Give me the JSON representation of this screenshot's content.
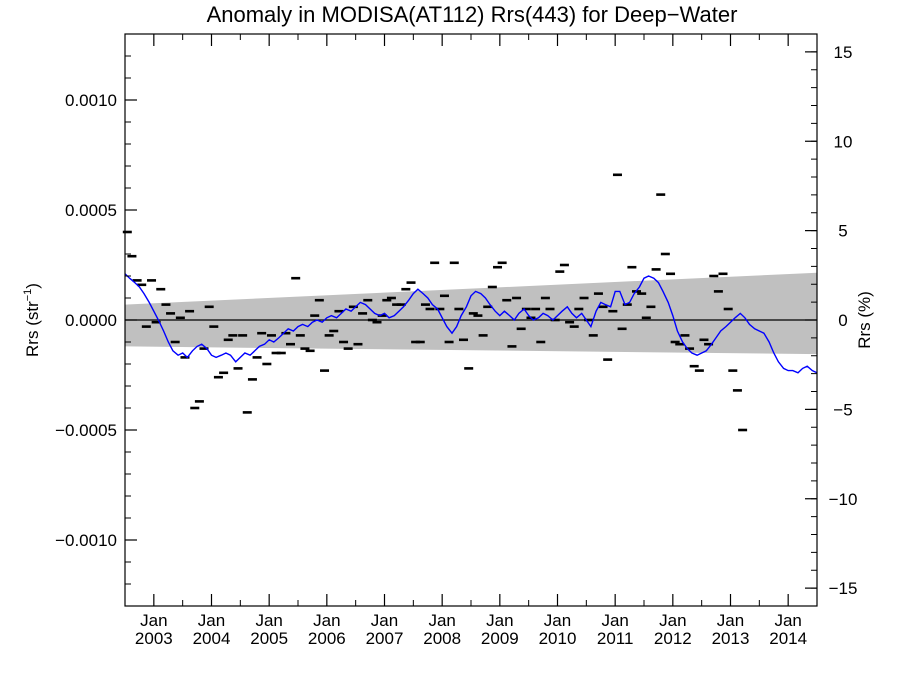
{
  "chart_data": {
    "type": "scatter",
    "title": "Anomaly in MODISA(AT112) Rrs(443) for Deep−Water",
    "ylabel_left": "Rrs (str",
    "ylabel_left_sup": "−1",
    "ylabel_left_close": ")",
    "ylabel_right": "Rrs (%)",
    "xlim": [
      2002.5,
      2014.5
    ],
    "ylim_left": [
      -0.0013,
      0.0013
    ],
    "ylim_right": [
      -16,
      16
    ],
    "grid": false,
    "y_ticks_left": [
      {
        "value": 0.001,
        "label": "0.0010"
      },
      {
        "value": 0.0005,
        "label": "0.0005"
      },
      {
        "value": 0.0,
        "label": "0.0000"
      },
      {
        "value": -0.0005,
        "label": "−0.0005"
      },
      {
        "value": -0.001,
        "label": "−0.0010"
      }
    ],
    "y_ticks_right": [
      {
        "value": 15,
        "label": "15"
      },
      {
        "value": 10,
        "label": "10"
      },
      {
        "value": 5,
        "label": "5"
      },
      {
        "value": 0,
        "label": "0"
      },
      {
        "value": -5,
        "label": "−5"
      },
      {
        "value": -10,
        "label": "−10"
      },
      {
        "value": -15,
        "label": "−15"
      }
    ],
    "x_ticks": [
      {
        "value": 2003.0,
        "month": "Jan",
        "year": "2003"
      },
      {
        "value": 2004.0,
        "month": "Jan",
        "year": "2004"
      },
      {
        "value": 2005.0,
        "month": "Jan",
        "year": "2005"
      },
      {
        "value": 2006.0,
        "month": "Jan",
        "year": "2006"
      },
      {
        "value": 2007.0,
        "month": "Jan",
        "year": "2007"
      },
      {
        "value": 2008.0,
        "month": "Jan",
        "year": "2008"
      },
      {
        "value": 2009.0,
        "month": "Jan",
        "year": "2009"
      },
      {
        "value": 2010.0,
        "month": "Jan",
        "year": "2010"
      },
      {
        "value": 2011.0,
        "month": "Jan",
        "year": "2011"
      },
      {
        "value": 2012.0,
        "month": "Jan",
        "year": "2012"
      },
      {
        "value": 2013.0,
        "month": "Jan",
        "year": "2013"
      },
      {
        "value": 2014.0,
        "month": "Jan",
        "year": "2014"
      }
    ],
    "trend_band": {
      "start_x": 2002.5,
      "start_lower": -0.00012,
      "start_upper": 7e-05,
      "end_x": 2014.5,
      "end_lower": -0.000155,
      "end_upper": 0.000215
    },
    "zero_line": 0.0,
    "colors": {
      "band": "#c0c0c0",
      "smoothed_line": "#0000ff",
      "points": "#000000",
      "axes": "#000000"
    },
    "monthly_points": [
      {
        "x": 2002.54,
        "y": 0.0004
      },
      {
        "x": 2002.62,
        "y": 0.00029
      },
      {
        "x": 2002.71,
        "y": 0.00018
      },
      {
        "x": 2002.79,
        "y": 0.00016
      },
      {
        "x": 2002.87,
        "y": -3e-05
      },
      {
        "x": 2002.96,
        "y": 0.00018
      },
      {
        "x": 2003.04,
        "y": -1e-05
      },
      {
        "x": 2003.12,
        "y": 0.00014
      },
      {
        "x": 2003.21,
        "y": 7e-05
      },
      {
        "x": 2003.29,
        "y": 3e-05
      },
      {
        "x": 2003.37,
        "y": -0.0001
      },
      {
        "x": 2003.46,
        "y": 1e-05
      },
      {
        "x": 2003.54,
        "y": -0.00017
      },
      {
        "x": 2003.62,
        "y": 4e-05
      },
      {
        "x": 2003.71,
        "y": -0.0004
      },
      {
        "x": 2003.79,
        "y": -0.00037
      },
      {
        "x": 2003.87,
        "y": -0.00013
      },
      {
        "x": 2003.96,
        "y": 6e-05
      },
      {
        "x": 2004.04,
        "y": -3e-05
      },
      {
        "x": 2004.12,
        "y": -0.00026
      },
      {
        "x": 2004.21,
        "y": -0.00024
      },
      {
        "x": 2004.29,
        "y": -9e-05
      },
      {
        "x": 2004.37,
        "y": -7e-05
      },
      {
        "x": 2004.46,
        "y": -0.00022
      },
      {
        "x": 2004.54,
        "y": -7e-05
      },
      {
        "x": 2004.62,
        "y": -0.00042
      },
      {
        "x": 2004.71,
        "y": -0.00027
      },
      {
        "x": 2004.79,
        "y": -0.00017
      },
      {
        "x": 2004.87,
        "y": -6e-05
      },
      {
        "x": 2004.96,
        "y": -0.0002
      },
      {
        "x": 2005.04,
        "y": -7e-05
      },
      {
        "x": 2005.12,
        "y": -0.00015
      },
      {
        "x": 2005.21,
        "y": -0.00015
      },
      {
        "x": 2005.29,
        "y": -6e-05
      },
      {
        "x": 2005.37,
        "y": -0.00011
      },
      {
        "x": 2005.46,
        "y": 0.00019
      },
      {
        "x": 2005.54,
        "y": -7e-05
      },
      {
        "x": 2005.62,
        "y": -0.00013
      },
      {
        "x": 2005.71,
        "y": -0.00014
      },
      {
        "x": 2005.79,
        "y": 2e-05
      },
      {
        "x": 2005.87,
        "y": 9e-05
      },
      {
        "x": 2005.96,
        "y": -0.00023
      },
      {
        "x": 2006.04,
        "y": -7e-05
      },
      {
        "x": 2006.12,
        "y": -5e-05
      },
      {
        "x": 2006.21,
        "y": 4e-05
      },
      {
        "x": 2006.29,
        "y": -0.0001
      },
      {
        "x": 2006.37,
        "y": -0.00013
      },
      {
        "x": 2006.46,
        "y": 6e-05
      },
      {
        "x": 2006.54,
        "y": -0.00011
      },
      {
        "x": 2006.62,
        "y": 3e-05
      },
      {
        "x": 2006.71,
        "y": 9e-05
      },
      {
        "x": 2006.79,
        "y": 0.0
      },
      {
        "x": 2006.87,
        "y": -1e-05
      },
      {
        "x": 2006.96,
        "y": 2e-05
      },
      {
        "x": 2007.04,
        "y": 9e-05
      },
      {
        "x": 2007.12,
        "y": 0.0001
      },
      {
        "x": 2007.21,
        "y": 7e-05
      },
      {
        "x": 2007.29,
        "y": 7e-05
      },
      {
        "x": 2007.37,
        "y": 0.00014
      },
      {
        "x": 2007.46,
        "y": 0.00017
      },
      {
        "x": 2007.54,
        "y": -0.0001
      },
      {
        "x": 2007.62,
        "y": -0.0001
      },
      {
        "x": 2007.71,
        "y": 7e-05
      },
      {
        "x": 2007.79,
        "y": 5e-05
      },
      {
        "x": 2007.87,
        "y": 0.00026
      },
      {
        "x": 2007.96,
        "y": 5e-05
      },
      {
        "x": 2008.04,
        "y": 0.00011
      },
      {
        "x": 2008.12,
        "y": -0.0001
      },
      {
        "x": 2008.21,
        "y": 0.00026
      },
      {
        "x": 2008.29,
        "y": 5e-05
      },
      {
        "x": 2008.37,
        "y": -9e-05
      },
      {
        "x": 2008.46,
        "y": -0.00022
      },
      {
        "x": 2008.54,
        "y": 3e-05
      },
      {
        "x": 2008.62,
        "y": 2e-05
      },
      {
        "x": 2008.71,
        "y": -7e-05
      },
      {
        "x": 2008.79,
        "y": 6e-05
      },
      {
        "x": 2008.87,
        "y": 0.00015
      },
      {
        "x": 2008.96,
        "y": 0.00024
      },
      {
        "x": 2009.04,
        "y": 0.00026
      },
      {
        "x": 2009.12,
        "y": 9e-05
      },
      {
        "x": 2009.21,
        "y": -0.00012
      },
      {
        "x": 2009.29,
        "y": 0.0001
      },
      {
        "x": 2009.37,
        "y": -4e-05
      },
      {
        "x": 2009.46,
        "y": 5e-05
      },
      {
        "x": 2009.54,
        "y": 1e-05
      },
      {
        "x": 2009.62,
        "y": 5e-05
      },
      {
        "x": 2009.71,
        "y": -0.0001
      },
      {
        "x": 2009.79,
        "y": 0.0001
      },
      {
        "x": 2009.87,
        "y": 5e-05
      },
      {
        "x": 2009.96,
        "y": 0.0
      },
      {
        "x": 2010.04,
        "y": 0.00022
      },
      {
        "x": 2010.12,
        "y": 0.00025
      },
      {
        "x": 2010.21,
        "y": -1e-05
      },
      {
        "x": 2010.29,
        "y": -3e-05
      },
      {
        "x": 2010.37,
        "y": 5e-05
      },
      {
        "x": 2010.46,
        "y": 0.0001
      },
      {
        "x": 2010.54,
        "y": 0.0
      },
      {
        "x": 2010.62,
        "y": -7e-05
      },
      {
        "x": 2010.71,
        "y": 0.00012
      },
      {
        "x": 2010.79,
        "y": 6e-05
      },
      {
        "x": 2010.87,
        "y": -0.00018
      },
      {
        "x": 2010.96,
        "y": 4e-05
      },
      {
        "x": 2011.04,
        "y": 0.00066
      },
      {
        "x": 2011.12,
        "y": -4e-05
      },
      {
        "x": 2011.21,
        "y": 7e-05
      },
      {
        "x": 2011.29,
        "y": 0.00024
      },
      {
        "x": 2011.37,
        "y": 0.00013
      },
      {
        "x": 2011.46,
        "y": 0.00012
      },
      {
        "x": 2011.54,
        "y": 1e-05
      },
      {
        "x": 2011.62,
        "y": 6e-05
      },
      {
        "x": 2011.71,
        "y": 0.00023
      },
      {
        "x": 2011.79,
        "y": 0.00057
      },
      {
        "x": 2011.87,
        "y": 0.0003
      },
      {
        "x": 2011.96,
        "y": 0.00021
      },
      {
        "x": 2012.04,
        "y": -0.0001
      },
      {
        "x": 2012.12,
        "y": -0.00011
      },
      {
        "x": 2012.21,
        "y": -7e-05
      },
      {
        "x": 2012.29,
        "y": -0.00013
      },
      {
        "x": 2012.37,
        "y": -0.00021
      },
      {
        "x": 2012.46,
        "y": -0.00023
      },
      {
        "x": 2012.54,
        "y": -9e-05
      },
      {
        "x": 2012.62,
        "y": -0.00011
      },
      {
        "x": 2012.71,
        "y": 0.0002
      },
      {
        "x": 2012.79,
        "y": 0.00013
      },
      {
        "x": 2012.87,
        "y": 0.00021
      },
      {
        "x": 2012.96,
        "y": 5e-05
      },
      {
        "x": 2013.04,
        "y": -0.00023
      },
      {
        "x": 2013.12,
        "y": -0.00032
      },
      {
        "x": 2013.21,
        "y": -0.0005
      }
    ],
    "smoothed_series": {
      "x": [
        2002.5,
        2002.58,
        2002.67,
        2002.75,
        2002.83,
        2002.92,
        2003.0,
        2003.08,
        2003.17,
        2003.25,
        2003.33,
        2003.42,
        2003.5,
        2003.58,
        2003.67,
        2003.75,
        2003.83,
        2003.92,
        2004.0,
        2004.08,
        2004.17,
        2004.25,
        2004.33,
        2004.42,
        2004.5,
        2004.58,
        2004.67,
        2004.75,
        2004.83,
        2004.92,
        2005.0,
        2005.08,
        2005.17,
        2005.25,
        2005.33,
        2005.42,
        2005.5,
        2005.58,
        2005.67,
        2005.75,
        2005.83,
        2005.92,
        2006.0,
        2006.08,
        2006.17,
        2006.25,
        2006.33,
        2006.42,
        2006.5,
        2006.58,
        2006.67,
        2006.75,
        2006.83,
        2006.92,
        2007.0,
        2007.08,
        2007.17,
        2007.25,
        2007.33,
        2007.42,
        2007.5,
        2007.58,
        2007.67,
        2007.75,
        2007.83,
        2007.92,
        2008.0,
        2008.08,
        2008.17,
        2008.25,
        2008.33,
        2008.42,
        2008.5,
        2008.58,
        2008.67,
        2008.75,
        2008.83,
        2008.92,
        2009.0,
        2009.08,
        2009.17,
        2009.25,
        2009.33,
        2009.42,
        2009.5,
        2009.58,
        2009.67,
        2009.75,
        2009.83,
        2009.92,
        2010.0,
        2010.08,
        2010.17,
        2010.25,
        2010.33,
        2010.42,
        2010.5,
        2010.58,
        2010.67,
        2010.75,
        2010.83,
        2010.92,
        2011.0,
        2011.08,
        2011.17,
        2011.25,
        2011.33,
        2011.42,
        2011.5,
        2011.58,
        2011.67,
        2011.75,
        2011.83,
        2011.92,
        2012.0,
        2012.08,
        2012.17,
        2012.25,
        2012.33,
        2012.42,
        2012.5,
        2012.58,
        2012.67,
        2012.75,
        2012.83,
        2012.92,
        2013.0,
        2013.08,
        2013.17,
        2013.25,
        2013.33,
        2013.42,
        2013.5,
        2013.58,
        2013.67,
        2013.75,
        2013.83,
        2013.92,
        2014.0,
        2014.08,
        2014.17,
        2014.25,
        2014.33,
        2014.42,
        2014.5
      ],
      "y": [
        0.00021,
        0.00019,
        0.00017,
        0.00015,
        0.00012,
        8e-05,
        4e-05,
        0.0,
        -5e-05,
        -0.0001,
        -0.00014,
        -0.00016,
        -0.00015,
        -0.00017,
        -0.00014,
        -0.00012,
        -0.00011,
        -0.00013,
        -0.00016,
        -0.00017,
        -0.00016,
        -0.00015,
        -0.00016,
        -0.00019,
        -0.00017,
        -0.00015,
        -0.00016,
        -0.00014,
        -0.00012,
        -0.00011,
        -9e-05,
        -0.0001,
        -8e-05,
        -6e-05,
        -4e-05,
        -5e-05,
        -3e-05,
        -2e-05,
        -3e-05,
        -1e-05,
        0.0,
        -1e-05,
        1e-05,
        2e-05,
        1e-05,
        3e-05,
        5e-05,
        4e-05,
        6e-05,
        8e-05,
        7e-05,
        5e-05,
        3e-05,
        2e-05,
        3e-05,
        1e-05,
        2e-05,
        4e-05,
        6e-05,
        9e-05,
        0.00012,
        0.00014,
        0.00012,
        0.0001,
        7e-05,
        5e-05,
        1e-05,
        -3e-05,
        -6e-05,
        -3e-05,
        2e-05,
        6e-05,
        0.00011,
        0.00013,
        0.00012,
        0.0001,
        7e-05,
        4e-05,
        2e-05,
        4e-05,
        2e-05,
        0.0,
        3e-05,
        5e-05,
        2e-05,
        0.0,
        1e-05,
        3e-05,
        2e-05,
        0.0,
        2e-05,
        4e-05,
        6e-05,
        3e-05,
        1e-05,
        3e-05,
        0.0,
        -3e-05,
        4e-05,
        8e-05,
        7e-05,
        6e-05,
        0.00013,
        0.00013,
        7e-05,
        8e-05,
        0.00012,
        0.00015,
        0.00019,
        0.0002,
        0.00019,
        0.00017,
        0.00013,
        8e-05,
        2e-05,
        -5e-05,
        -0.0001,
        -0.00013,
        -0.00015,
        -0.00016,
        -0.00015,
        -0.00014,
        -0.00011,
        -8e-05,
        -5e-05,
        -3e-05,
        -1e-05,
        1e-05,
        3e-05,
        1e-05,
        -2e-05,
        -4e-05,
        -5e-05,
        -6e-05,
        -0.0001,
        -0.00015,
        -0.00019,
        -0.00022,
        -0.00023,
        -0.00023,
        -0.00024,
        -0.00022,
        -0.00021,
        -0.00023,
        -0.00024
      ]
    }
  }
}
